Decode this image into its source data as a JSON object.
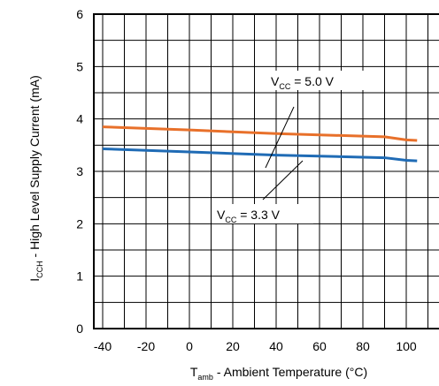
{
  "chart_data": {
    "type": "line",
    "xlim": [
      -40,
      100
    ],
    "ylim": [
      0,
      6
    ],
    "x_ticks": [
      "-40",
      "-20",
      "0",
      "20",
      "40",
      "60",
      "80",
      "100"
    ],
    "y_ticks": [
      "0",
      "1",
      "2",
      "3",
      "4",
      "5",
      "6"
    ],
    "xlabel": {
      "main": "T",
      "sub": "amb",
      "rest": " - Ambient Temperature (°C)"
    },
    "ylabel": {
      "main": "I",
      "sub": "CCH",
      "rest": " - High Level Supply Current (mA)"
    },
    "grid": true,
    "series": [
      {
        "name": "V_CC = 5.0 V",
        "label_main": "V",
        "label_sub": "CC",
        "label_rest": " = 5.0 V",
        "color": "#E8702A",
        "x": [
          -40,
          0,
          40,
          90,
          100,
          105
        ],
        "y": [
          3.85,
          3.79,
          3.72,
          3.66,
          3.6,
          3.59
        ]
      },
      {
        "name": "V_CC = 3.3 V",
        "label_main": "V",
        "label_sub": "CC",
        "label_rest": " = 3.3 V",
        "color": "#1F6BB5",
        "x": [
          -40,
          0,
          40,
          90,
          100,
          105
        ],
        "y": [
          3.43,
          3.37,
          3.31,
          3.26,
          3.21,
          3.2
        ]
      }
    ]
  }
}
